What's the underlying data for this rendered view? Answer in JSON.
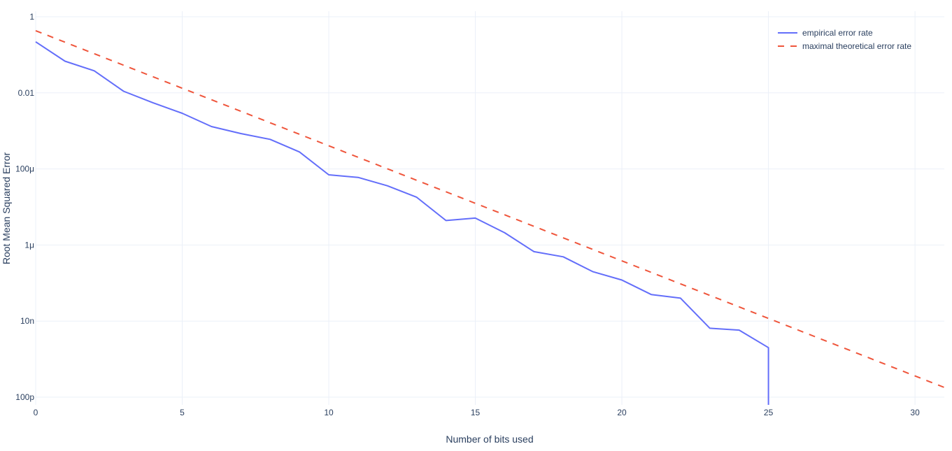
{
  "chart_data": {
    "type": "line",
    "title": "",
    "xlabel": "Number of bits used",
    "ylabel": "Root Mean Squared Error",
    "x_range": [
      0,
      31
    ],
    "y_scale": "log",
    "y_range": [
      1e-10,
      1
    ],
    "grid": true,
    "legend_position": "top-right",
    "x_ticks": [
      {
        "value": 0,
        "label": "0"
      },
      {
        "value": 5,
        "label": "5"
      },
      {
        "value": 10,
        "label": "10"
      },
      {
        "value": 15,
        "label": "15"
      },
      {
        "value": 20,
        "label": "20"
      },
      {
        "value": 25,
        "label": "25"
      },
      {
        "value": 30,
        "label": "30"
      }
    ],
    "y_ticks": [
      {
        "value": 1,
        "label": "1"
      },
      {
        "value": 0.01,
        "label": "0.01"
      },
      {
        "value": 0.0001,
        "label": "100μ"
      },
      {
        "value": 1e-06,
        "label": "1μ"
      },
      {
        "value": 1e-08,
        "label": "10n"
      },
      {
        "value": 1e-10,
        "label": "100p"
      }
    ],
    "series": [
      {
        "name": "empirical error rate",
        "color": "#636efa",
        "dash": "solid",
        "x": [
          0,
          1,
          2,
          3,
          4,
          5,
          6,
          7,
          8,
          9,
          10,
          11,
          12,
          13,
          14,
          15,
          16,
          17,
          18,
          19,
          20,
          21,
          22,
          23,
          24,
          25
        ],
        "y": [
          0.22,
          0.068,
          0.038,
          0.011,
          0.0055,
          0.0029,
          0.0013,
          0.00085,
          0.0006,
          0.00028,
          7e-05,
          6e-05,
          3.6e-05,
          1.8e-05,
          4.4e-06,
          5.1e-06,
          2.1e-06,
          6.7e-07,
          4.9e-07,
          2e-07,
          1.2e-07,
          5e-08,
          4e-08,
          6.5e-09,
          5.8e-09,
          2e-09
        ],
        "drop_to_floor_at_end": true
      },
      {
        "name": "maximal theoretical error rate",
        "color": "#ef553b",
        "dash": "dash",
        "x": [
          0,
          31
        ],
        "y": [
          0.43,
          1.8e-10
        ]
      }
    ]
  }
}
